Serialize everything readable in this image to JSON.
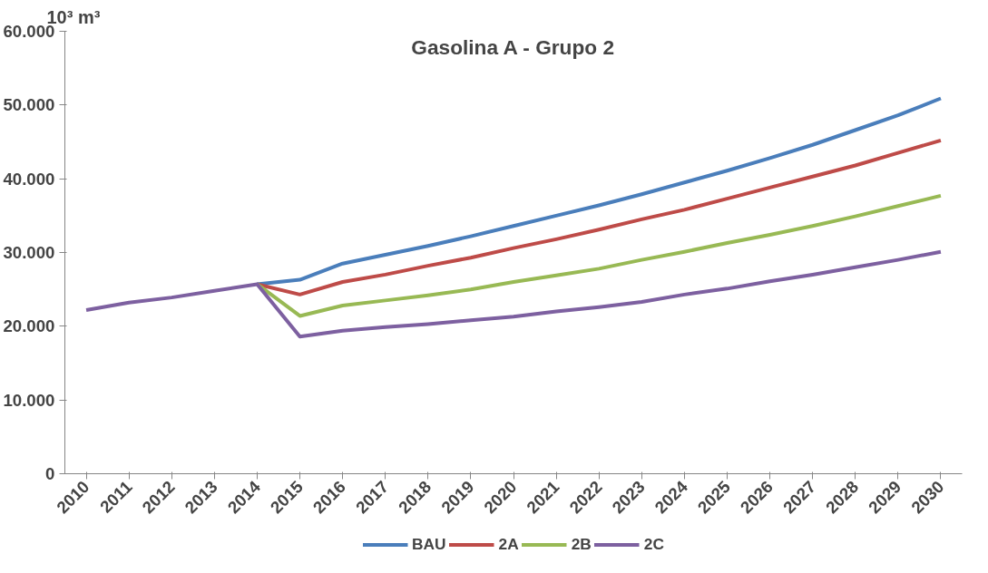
{
  "chart_data": {
    "type": "line",
    "title": "Gasolina A - Grupo 2",
    "ylabel": "10³ m³",
    "categories": [
      "2010",
      "2011",
      "2012",
      "2013",
      "2014",
      "2015",
      "2016",
      "2017",
      "2018",
      "2019",
      "2020",
      "2021",
      "2022",
      "2023",
      "2024",
      "2025",
      "2026",
      "2027",
      "2028",
      "2029",
      "2030"
    ],
    "series": [
      {
        "name": "BAU",
        "color": "#4a7ebb",
        "values": [
          null,
          null,
          null,
          null,
          25700,
          26300,
          28500,
          29700,
          30900,
          32200,
          33600,
          35000,
          36400,
          37900,
          39500,
          41100,
          42800,
          44600,
          46600,
          48600,
          50900
        ]
      },
      {
        "name": "2A",
        "color": "#be4b48",
        "values": [
          null,
          null,
          null,
          null,
          25700,
          24300,
          26000,
          27000,
          28200,
          29300,
          30600,
          31800,
          33100,
          34500,
          35800,
          37300,
          38800,
          40300,
          41800,
          43500,
          45200
        ]
      },
      {
        "name": "2B",
        "color": "#98b954",
        "values": [
          null,
          null,
          null,
          null,
          25700,
          21400,
          22800,
          23500,
          24200,
          25000,
          26000,
          26900,
          27800,
          29000,
          30100,
          31300,
          32400,
          33600,
          34900,
          36300,
          37700
        ]
      },
      {
        "name": "2C",
        "color": "#7d60a0",
        "values": [
          22200,
          23200,
          23900,
          24800,
          25700,
          18600,
          19400,
          19900,
          20300,
          20800,
          21300,
          22000,
          22600,
          23300,
          24300,
          25100,
          26100,
          27000,
          28000,
          29000,
          30100
        ]
      }
    ],
    "ylim": [
      0,
      60000
    ],
    "yticks": [
      {
        "value": 0,
        "label": "0"
      },
      {
        "value": 10000,
        "label": "10.000"
      },
      {
        "value": 20000,
        "label": "20.000"
      },
      {
        "value": 30000,
        "label": "30.000"
      },
      {
        "value": 40000,
        "label": "40.000"
      },
      {
        "value": 50000,
        "label": "50.000"
      },
      {
        "value": 60000,
        "label": "60.000"
      }
    ],
    "grid": false,
    "legend": "bottom",
    "marker": "none",
    "line_style": "solid"
  }
}
